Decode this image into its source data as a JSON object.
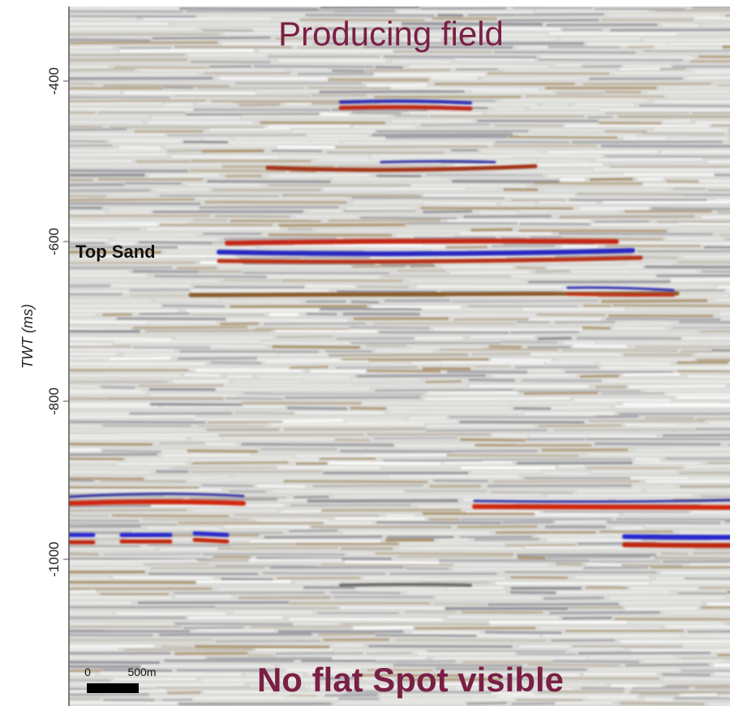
{
  "header": {
    "title": "Producing field"
  },
  "y_axis": {
    "label": "TWT (ms)",
    "ticks": [
      -400,
      -600,
      -800,
      -1000
    ]
  },
  "annotations": {
    "horizon": "Top Sand",
    "footer": "No flat Spot visible"
  },
  "scale_bar": {
    "start": "0",
    "end": "500m"
  }
}
